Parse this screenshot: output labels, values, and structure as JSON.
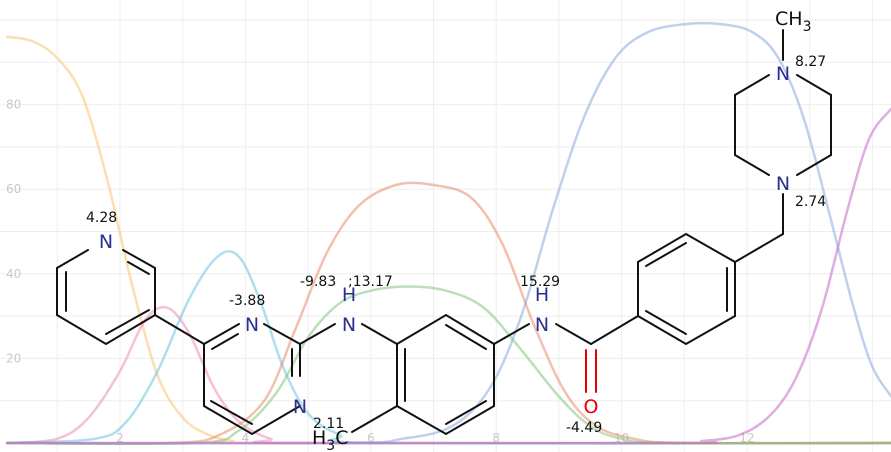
{
  "chart_data": {
    "type": "line",
    "title": "",
    "xlabel": "",
    "ylabel": "",
    "xlim": [
      0.2,
      14.3
    ],
    "ylim": [
      0,
      100
    ],
    "x_ticks": [
      "2",
      "4",
      "6",
      "8",
      "10",
      "12"
    ],
    "y_ticks": [
      "20",
      "40",
      "60",
      "80"
    ],
    "grid": true,
    "series": [
      {
        "color": "#f9c370",
        "points": [
          [
            0.2,
            96
          ],
          [
            0.6,
            95
          ],
          [
            1.0,
            91
          ],
          [
            1.4,
            82
          ],
          [
            1.8,
            62
          ],
          [
            2.2,
            37
          ],
          [
            2.6,
            16
          ],
          [
            3.0,
            6
          ],
          [
            3.4,
            2
          ],
          [
            3.8,
            0.5
          ],
          [
            4.4,
            0
          ],
          [
            14.3,
            0
          ]
        ]
      },
      {
        "color": "#f08db0",
        "points": [
          [
            0.2,
            0
          ],
          [
            1.0,
            1
          ],
          [
            1.5,
            6
          ],
          [
            2.0,
            17
          ],
          [
            2.4,
            29
          ],
          [
            2.75,
            32
          ],
          [
            3.1,
            26
          ],
          [
            3.5,
            13
          ],
          [
            3.9,
            5
          ],
          [
            4.4,
            1
          ],
          [
            5.0,
            0
          ],
          [
            14.3,
            0
          ]
        ]
      },
      {
        "color": "#6bc5de",
        "points": [
          [
            0.2,
            0
          ],
          [
            1.6,
            1
          ],
          [
            2.1,
            5
          ],
          [
            2.6,
            17
          ],
          [
            3.1,
            34
          ],
          [
            3.55,
            44
          ],
          [
            3.9,
            44
          ],
          [
            4.25,
            33
          ],
          [
            4.6,
            18
          ],
          [
            5.0,
            7
          ],
          [
            5.5,
            2
          ],
          [
            6.2,
            0
          ],
          [
            14.3,
            0
          ]
        ]
      },
      {
        "color": "#e98a6c",
        "points": [
          [
            0.2,
            0
          ],
          [
            2.8,
            0
          ],
          [
            3.6,
            2
          ],
          [
            4.3,
            10
          ],
          [
            4.8,
            27
          ],
          [
            5.3,
            45
          ],
          [
            5.8,
            56
          ],
          [
            6.4,
            61
          ],
          [
            7.0,
            61
          ],
          [
            7.6,
            58
          ],
          [
            8.1,
            47
          ],
          [
            8.6,
            28
          ],
          [
            9.1,
            12
          ],
          [
            9.6,
            4
          ],
          [
            10.2,
            1
          ],
          [
            11.0,
            0
          ],
          [
            14.3,
            0
          ]
        ]
      },
      {
        "color": "#82c77e",
        "points": [
          [
            0.2,
            0
          ],
          [
            3.2,
            0
          ],
          [
            3.9,
            3
          ],
          [
            4.5,
            12
          ],
          [
            5.0,
            25
          ],
          [
            5.5,
            33
          ],
          [
            6.0,
            36
          ],
          [
            6.6,
            37
          ],
          [
            7.2,
            36
          ],
          [
            7.8,
            32
          ],
          [
            8.4,
            22
          ],
          [
            9.0,
            11
          ],
          [
            9.5,
            4
          ],
          [
            10.0,
            1
          ],
          [
            10.8,
            0
          ],
          [
            14.3,
            0
          ]
        ]
      },
      {
        "color": "#8aaadf",
        "points": [
          [
            0.2,
            0
          ],
          [
            5.5,
            0
          ],
          [
            6.5,
            1
          ],
          [
            7.3,
            4
          ],
          [
            7.9,
            13
          ],
          [
            8.4,
            30
          ],
          [
            8.9,
            55
          ],
          [
            9.4,
            77
          ],
          [
            9.9,
            91
          ],
          [
            10.4,
            97
          ],
          [
            11.0,
            99
          ],
          [
            11.6,
            99
          ],
          [
            12.1,
            97
          ],
          [
            12.5,
            91
          ],
          [
            12.9,
            77
          ],
          [
            13.3,
            55
          ],
          [
            13.7,
            32
          ],
          [
            14.0,
            18
          ],
          [
            14.3,
            11
          ]
        ]
      },
      {
        "color": "#c46ac4",
        "points": [
          [
            0.2,
            0
          ],
          [
            10.5,
            0
          ],
          [
            11.3,
            0.5
          ],
          [
            11.9,
            2
          ],
          [
            12.4,
            7
          ],
          [
            12.8,
            16
          ],
          [
            13.2,
            32
          ],
          [
            13.6,
            55
          ],
          [
            13.95,
            72
          ],
          [
            14.3,
            79
          ]
        ]
      }
    ]
  },
  "molecule": {
    "atoms": {
      "pyridine_n": "N",
      "pyrimidine_n1": "N",
      "pyrimidine_n3": "N",
      "amine_n": "N",
      "amine_h": "H",
      "amide_n": "N",
      "amide_h": "H",
      "carbonyl_o": "O",
      "piperazine_n1": "N",
      "piperazine_n4": "N",
      "methyl_top": "CH",
      "methyl_top_sub": "3",
      "methyl_ring_h": "H",
      "methyl_ring_sub": "3",
      "methyl_ring_c": "C"
    },
    "pka_labels": {
      "pyridine": "4.28",
      "pyrimidine": "-3.88",
      "amine_a": "-9.83",
      "amine_b": ";13.17",
      "amide_nh": "15.29",
      "piperazine_methyl": "8.27",
      "piperazine_benzyl": "2.74",
      "carbonyl": "-4.49",
      "methyl": "2.11"
    }
  }
}
